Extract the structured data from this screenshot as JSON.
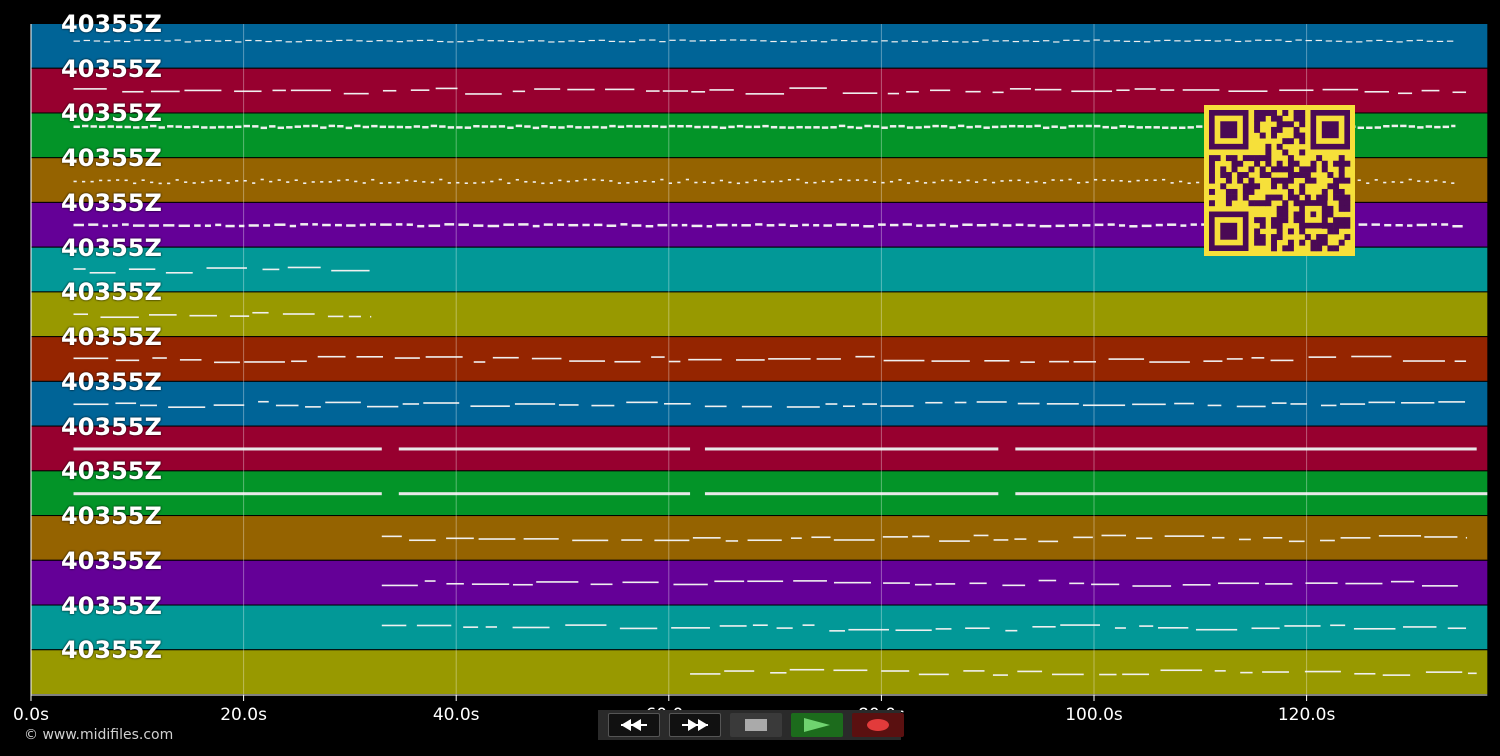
{
  "app": {
    "copyright": "© www.midifiles.com"
  },
  "timeline": {
    "ticks": [
      "0.0s",
      "20.0s",
      "40.0s",
      "60.0s",
      "80.0s",
      "100.0s",
      "120.0s"
    ],
    "tick_seconds": [
      0,
      20,
      40,
      60,
      80,
      100,
      120
    ],
    "max_seconds": 137
  },
  "tracks": [
    {
      "label": "40355Z",
      "color": "#006497",
      "start": 4,
      "end": 134,
      "style": "dense-thin"
    },
    {
      "label": "40355Z",
      "color": "#97002f",
      "start": 4,
      "end": 135,
      "style": "melody"
    },
    {
      "label": "40355Z",
      "color": "#039428",
      "start": 4,
      "end": 134,
      "style": "dense-thick"
    },
    {
      "label": "40355Z",
      "color": "#956300",
      "start": 4,
      "end": 134,
      "style": "dotted"
    },
    {
      "label": "40355Z",
      "color": "#640097",
      "start": 4,
      "end": 135,
      "style": "dashed-bright"
    },
    {
      "label": "40355Z",
      "color": "#029897",
      "start": 4,
      "end": 32,
      "style": "melody"
    },
    {
      "label": "40355Z",
      "color": "#989900",
      "start": 4,
      "end": 32,
      "style": "melody"
    },
    {
      "label": "40355Z",
      "color": "#952500",
      "start": 4,
      "end": 135,
      "style": "melody"
    },
    {
      "label": "40355Z",
      "color": "#006497",
      "start": 4,
      "end": 135,
      "style": "melody"
    },
    {
      "label": "40355Z",
      "color": "#97002f",
      "start": 4,
      "end": 136,
      "style": "long"
    },
    {
      "label": "40355Z",
      "color": "#039428",
      "start": 4,
      "end": 137,
      "style": "long"
    },
    {
      "label": "40355Z",
      "color": "#956300",
      "start": 33,
      "end": 135,
      "style": "melody"
    },
    {
      "label": "40355Z",
      "color": "#640097",
      "start": 33,
      "end": 135,
      "style": "melody"
    },
    {
      "label": "40355Z",
      "color": "#029897",
      "start": 33,
      "end": 135,
      "style": "melody"
    },
    {
      "label": "40355Z",
      "color": "#989900",
      "start": 62,
      "end": 136,
      "style": "melody"
    }
  ],
  "transport": {
    "rewind": {
      "icon": "rewind-icon"
    },
    "fast_forward": {
      "icon": "fast-forward-icon"
    },
    "stop": {
      "icon": "stop-icon"
    },
    "play": {
      "icon": "play-icon",
      "color": "#6fd36f"
    },
    "record": {
      "icon": "record-icon",
      "color": "#e23b3b"
    }
  },
  "qr_code": {
    "icon": "qr-code",
    "fg": "#4a0a55",
    "bg": "#f6e03a"
  }
}
